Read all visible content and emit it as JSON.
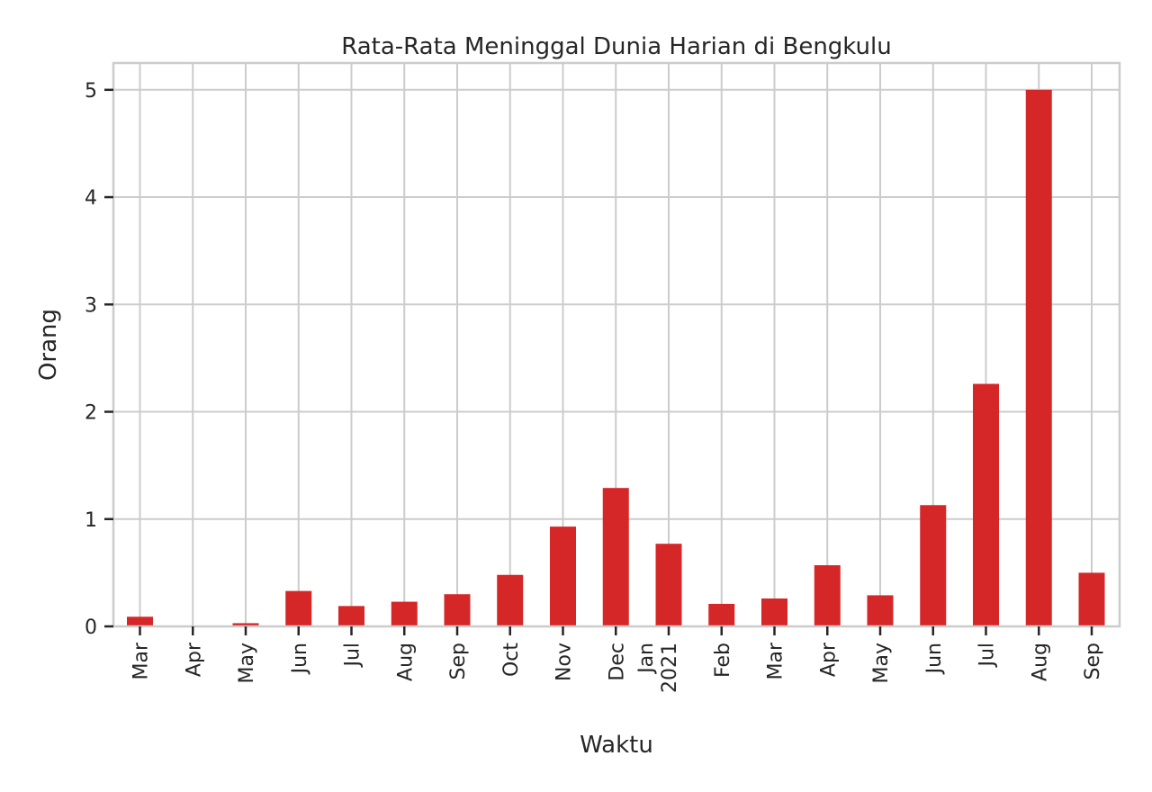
{
  "chart_data": {
    "type": "bar",
    "title": "Rata-Rata Meninggal Dunia Harian di Bengkulu",
    "xlabel": "Waktu",
    "ylabel": "Orang",
    "ylim": [
      0,
      5.25
    ],
    "yticks": [
      0,
      1,
      2,
      3,
      4,
      5
    ],
    "grid": true,
    "legend": "none",
    "bar_color": "#d62728",
    "categories": [
      [
        "Mar"
      ],
      [
        "Apr"
      ],
      [
        "May"
      ],
      [
        "Jun"
      ],
      [
        "Jul"
      ],
      [
        "Aug"
      ],
      [
        "Sep"
      ],
      [
        "Oct"
      ],
      [
        "Nov"
      ],
      [
        "Dec"
      ],
      [
        "Jan",
        "2021"
      ],
      [
        "Feb"
      ],
      [
        "Mar"
      ],
      [
        "Apr"
      ],
      [
        "May"
      ],
      [
        "Jun"
      ],
      [
        "Jul"
      ],
      [
        "Aug"
      ],
      [
        "Sep"
      ]
    ],
    "values": [
      0.09,
      0.0,
      0.03,
      0.33,
      0.19,
      0.23,
      0.3,
      0.48,
      0.93,
      1.29,
      0.77,
      0.21,
      0.26,
      0.57,
      0.29,
      1.13,
      2.26,
      5.0,
      0.5
    ]
  }
}
